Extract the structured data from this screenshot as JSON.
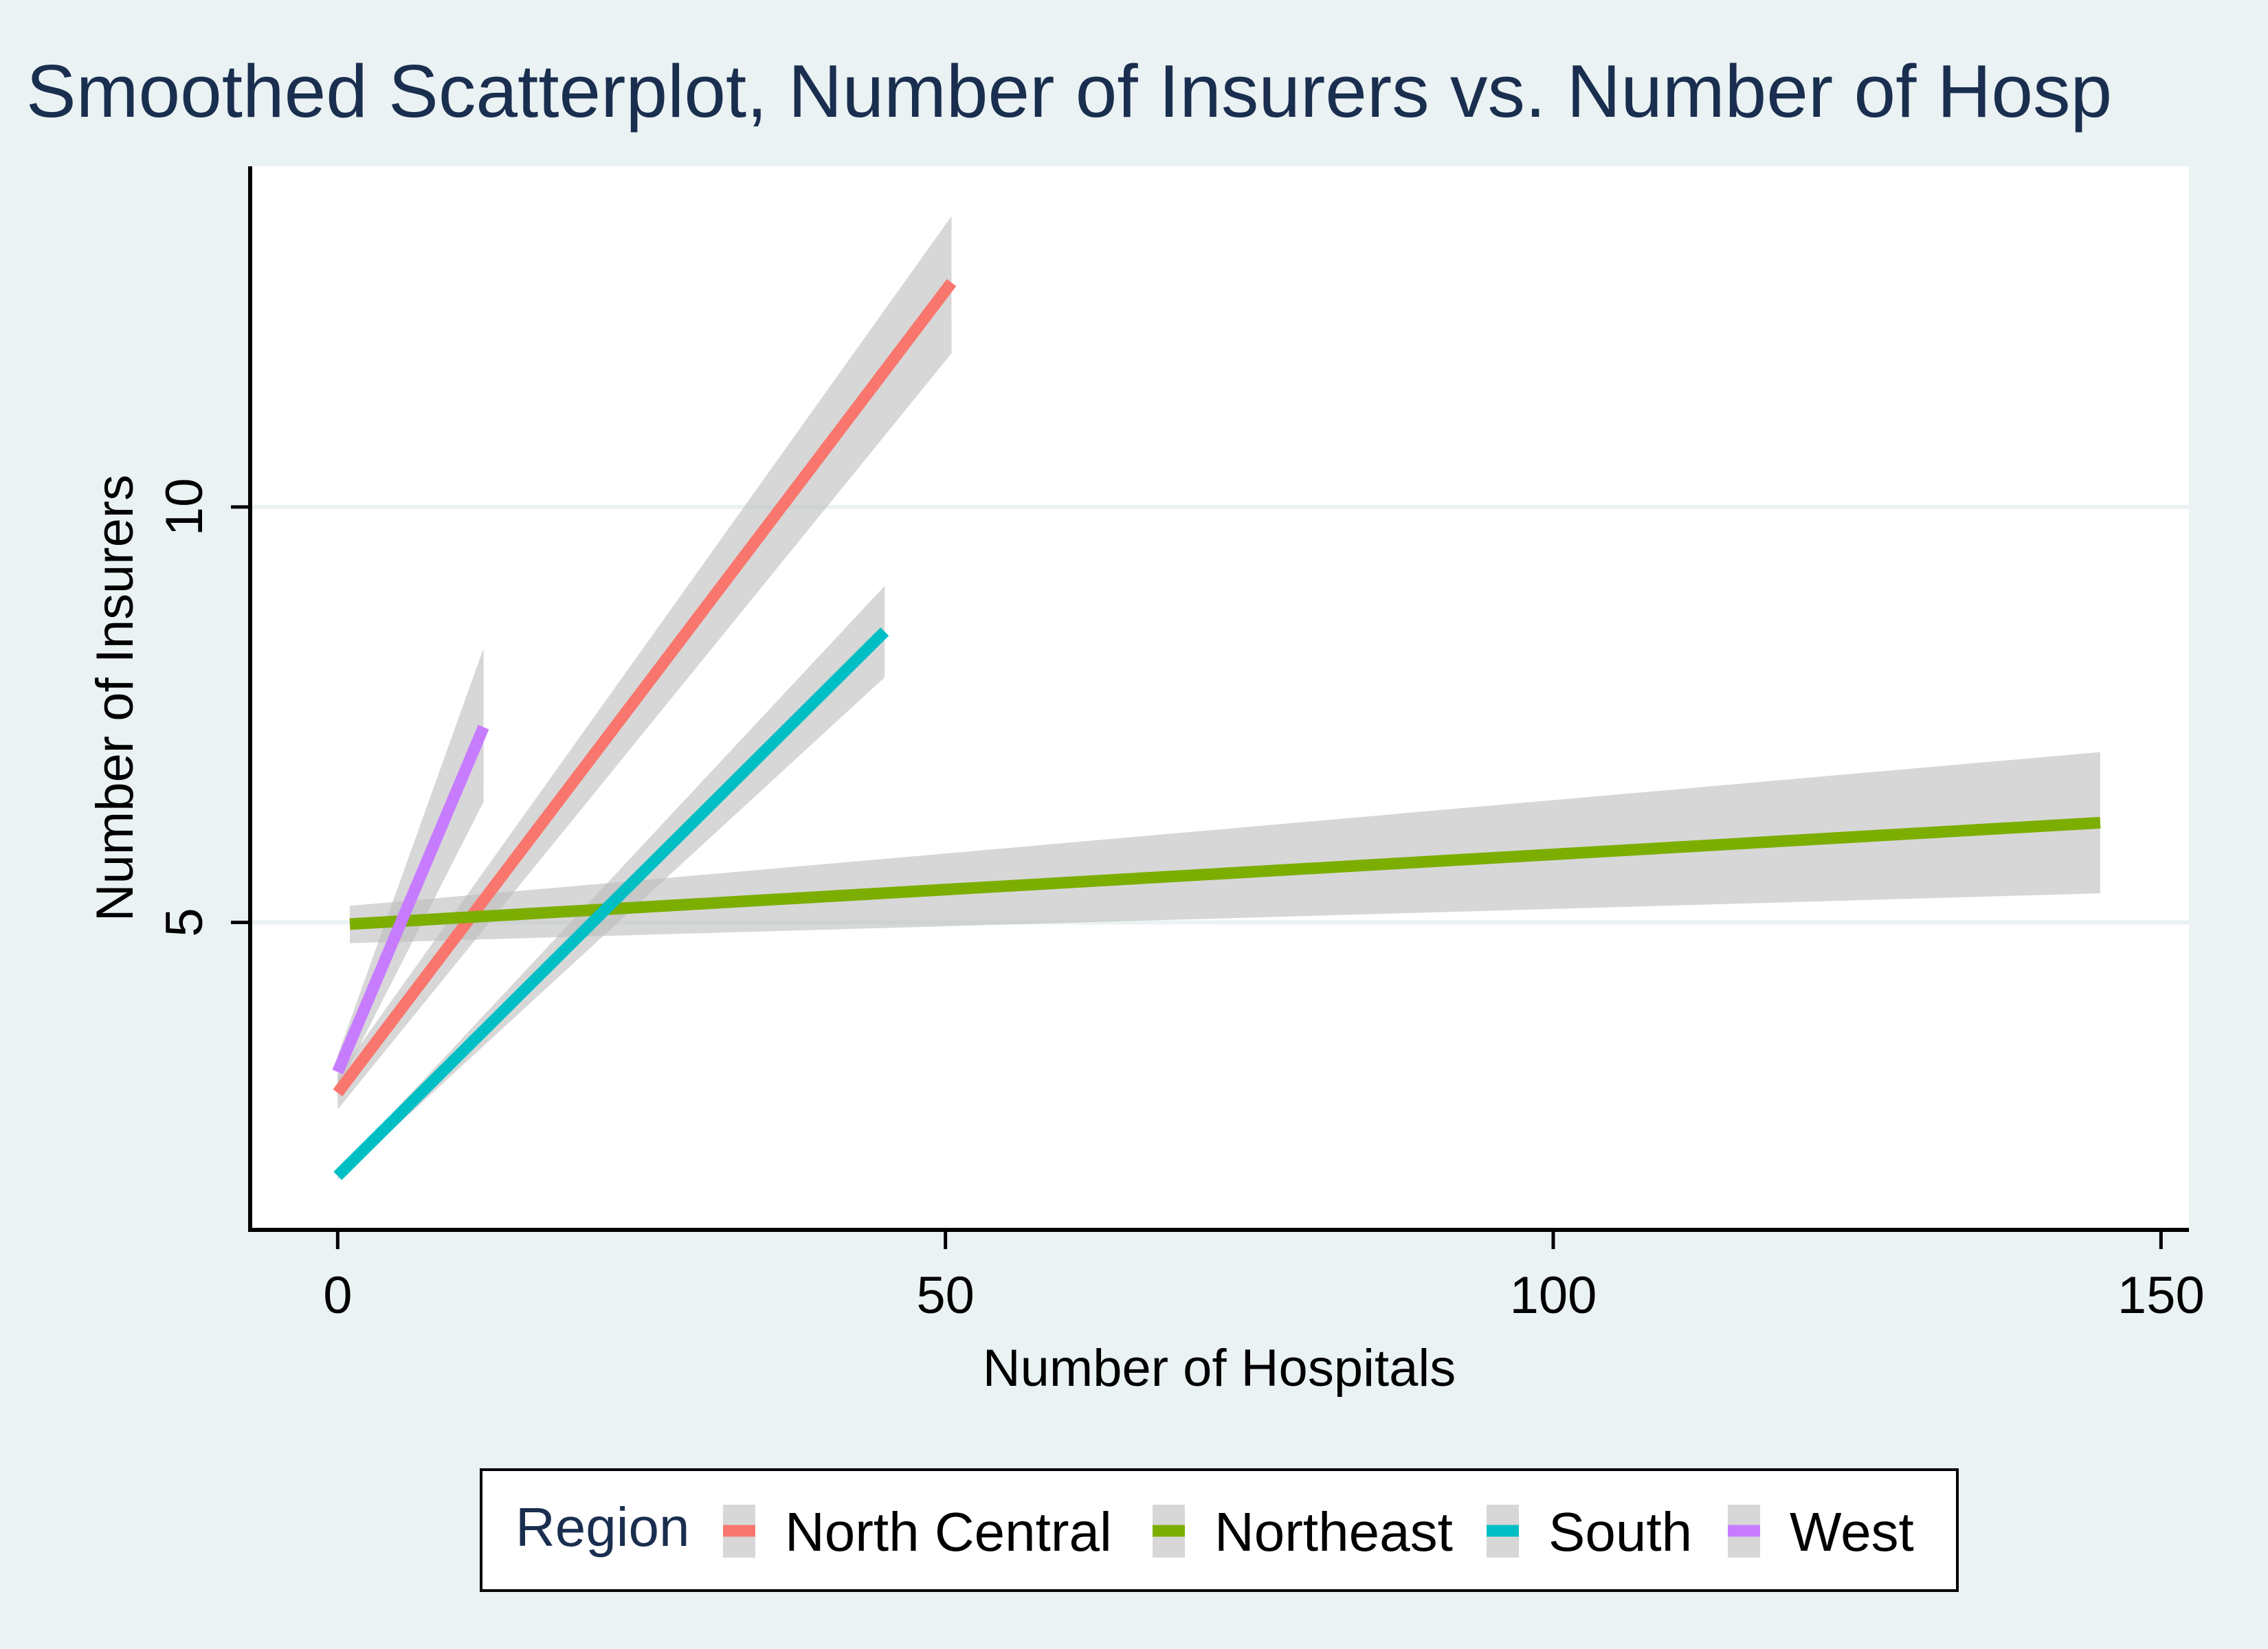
{
  "colors": {
    "background": "#eaf2f3",
    "plot_background": "#ffffff",
    "gridline": "#eaf2f3",
    "title": "#1a2e4f",
    "ci_band": "#bdbdbd"
  },
  "chart_data": {
    "type": "line",
    "title": "Smoothed Scatterplot, Number of Insurers vs. Number of Hosp",
    "xlabel": "Number of Hospitals",
    "ylabel": "Number of Insurers",
    "xlim": [
      -7.2,
      152.3
    ],
    "ylim": [
      1.3,
      14.1
    ],
    "xticks": [
      0,
      50,
      100,
      150
    ],
    "yticks": [
      5,
      10
    ],
    "grid": true,
    "legend": {
      "title": "Region",
      "position": "bottom"
    },
    "series": [
      {
        "name": "North Central",
        "color": "#f8766d",
        "x": [
          0,
          50.5
        ],
        "y": [
          2.95,
          12.7
        ],
        "ci_lower": [
          2.75,
          11.85
        ],
        "ci_upper": [
          3.15,
          13.5
        ]
      },
      {
        "name": "Northeast",
        "color": "#7cae00",
        "x": [
          1,
          145
        ],
        "y": [
          4.98,
          6.2
        ],
        "ci_lower": [
          4.75,
          5.35
        ],
        "ci_upper": [
          5.2,
          7.05
        ]
      },
      {
        "name": "South",
        "color": "#00bfc4",
        "x": [
          0,
          45
        ],
        "y": [
          1.95,
          8.5
        ],
        "ci_lower": [
          1.9,
          7.95
        ],
        "ci_upper": [
          2.0,
          9.05
        ]
      },
      {
        "name": "West",
        "color": "#c77cff",
        "x": [
          0,
          12
        ],
        "y": [
          3.2,
          7.35
        ],
        "ci_lower": [
          3.0,
          6.45
        ],
        "ci_upper": [
          3.4,
          8.3
        ]
      }
    ]
  }
}
